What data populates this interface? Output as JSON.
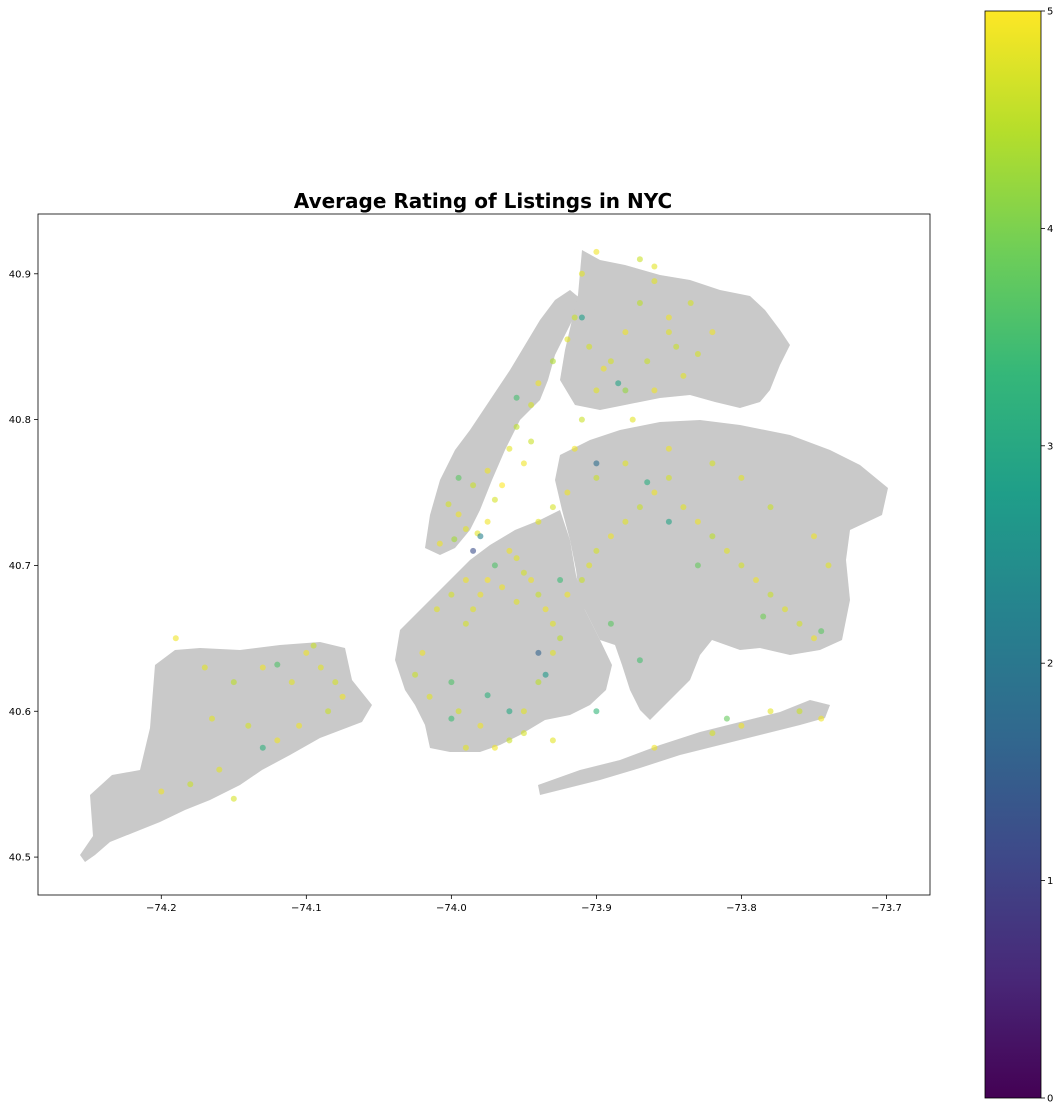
{
  "chart_data": {
    "type": "scatter",
    "title": "Average Rating of Listings in NYC",
    "xlabel": "",
    "ylabel": "",
    "xlim": [
      -74.285,
      -73.67
    ],
    "ylim": [
      40.474,
      40.941
    ],
    "x_ticks": [
      -74.2,
      -74.1,
      -74.0,
      -73.9,
      -73.8,
      -73.7
    ],
    "x_tick_labels": [
      "−74.2",
      "−74.1",
      "−74.0",
      "−73.9",
      "−73.8",
      "−73.7"
    ],
    "y_ticks": [
      40.5,
      40.6,
      40.7,
      40.8,
      40.9
    ],
    "y_tick_labels": [
      "40.5",
      "40.6",
      "40.7",
      "40.8",
      "40.9"
    ],
    "grid": false,
    "background_map": "NYC borough boundaries (gray fill)",
    "map_color": "#c9c9c9",
    "marker_alpha": 0.6,
    "colorbar": {
      "colormap": "viridis",
      "range": [
        0,
        5
      ],
      "ticks": [
        0,
        1,
        2,
        3,
        4,
        5
      ],
      "tick_labels": [
        "0",
        "1",
        "2",
        "3",
        "4",
        "5"
      ],
      "stops": [
        "#440154",
        "#482878",
        "#3e4989",
        "#31688e",
        "#26828e",
        "#1f9e89",
        "#35b779",
        "#6ece58",
        "#b5de2b",
        "#fde725"
      ]
    },
    "points": [
      [
        -73.995,
        40.735,
        4.9
      ],
      [
        -73.99,
        40.725,
        4.8
      ],
      [
        -74.002,
        40.742,
        4.7
      ],
      [
        -73.985,
        40.755,
        4.6
      ],
      [
        -73.975,
        40.765,
        4.9
      ],
      [
        -73.96,
        40.78,
        4.8
      ],
      [
        -73.955,
        40.795,
        4.5
      ],
      [
        -73.945,
        40.81,
        4.7
      ],
      [
        -73.94,
        40.825,
        4.9
      ],
      [
        -73.93,
        40.84,
        4.4
      ],
      [
        -73.92,
        40.855,
        4.8
      ],
      [
        -73.915,
        40.87,
        4.6
      ],
      [
        -74.008,
        40.715,
        4.9
      ],
      [
        -73.998,
        40.718,
        4.3
      ],
      [
        -73.982,
        40.722,
        4.8
      ],
      [
        -73.975,
        40.73,
        4.9
      ],
      [
        -73.97,
        40.745,
        4.7
      ],
      [
        -73.965,
        40.755,
        5.0
      ],
      [
        -73.95,
        40.77,
        4.9
      ],
      [
        -73.945,
        40.785,
        4.6
      ],
      [
        -73.96,
        40.71,
        4.9
      ],
      [
        -73.955,
        40.705,
        4.8
      ],
      [
        -73.95,
        40.695,
        4.7
      ],
      [
        -73.945,
        40.69,
        4.9
      ],
      [
        -73.94,
        40.68,
        4.6
      ],
      [
        -73.935,
        40.67,
        4.9
      ],
      [
        -73.93,
        40.66,
        4.8
      ],
      [
        -73.925,
        40.65,
        4.5
      ],
      [
        -73.98,
        40.68,
        4.9
      ],
      [
        -73.985,
        40.67,
        4.8
      ],
      [
        -73.99,
        40.66,
        4.7
      ],
      [
        -73.975,
        40.69,
        5.0
      ],
      [
        -73.965,
        40.685,
        4.9
      ],
      [
        -73.955,
        40.675,
        4.8
      ],
      [
        -73.99,
        40.69,
        4.9
      ],
      [
        -74.0,
        40.68,
        4.7
      ],
      [
        -74.01,
        40.67,
        4.8
      ],
      [
        -74.02,
        40.64,
        4.9
      ],
      [
        -74.025,
        40.625,
        4.6
      ],
      [
        -74.015,
        40.61,
        4.8
      ],
      [
        -73.995,
        40.6,
        4.7
      ],
      [
        -73.98,
        40.59,
        4.9
      ],
      [
        -73.96,
        40.58,
        4.6
      ],
      [
        -73.95,
        40.6,
        4.8
      ],
      [
        -73.94,
        40.62,
        4.5
      ],
      [
        -73.93,
        40.64,
        4.8
      ],
      [
        -73.92,
        40.68,
        4.9
      ],
      [
        -73.91,
        40.69,
        4.6
      ],
      [
        -73.905,
        40.7,
        4.8
      ],
      [
        -73.9,
        40.71,
        4.7
      ],
      [
        -73.89,
        40.72,
        4.9
      ],
      [
        -73.88,
        40.73,
        4.8
      ],
      [
        -73.87,
        40.74,
        4.6
      ],
      [
        -73.86,
        40.75,
        4.9
      ],
      [
        -73.85,
        40.76,
        4.7
      ],
      [
        -73.84,
        40.74,
        4.8
      ],
      [
        -73.83,
        40.73,
        4.9
      ],
      [
        -73.82,
        40.72,
        4.5
      ],
      [
        -73.81,
        40.71,
        4.8
      ],
      [
        -73.8,
        40.7,
        4.7
      ],
      [
        -73.79,
        40.69,
        4.9
      ],
      [
        -73.78,
        40.68,
        4.6
      ],
      [
        -73.77,
        40.67,
        4.8
      ],
      [
        -73.76,
        40.66,
        4.7
      ],
      [
        -73.75,
        40.65,
        4.9
      ],
      [
        -73.74,
        40.7,
        4.8
      ],
      [
        -73.75,
        40.72,
        4.9
      ],
      [
        -73.78,
        40.74,
        4.6
      ],
      [
        -73.8,
        40.76,
        4.8
      ],
      [
        -73.82,
        40.77,
        4.7
      ],
      [
        -73.85,
        40.78,
        4.9
      ],
      [
        -73.88,
        40.77,
        4.8
      ],
      [
        -73.9,
        40.76,
        4.6
      ],
      [
        -73.92,
        40.75,
        4.9
      ],
      [
        -73.93,
        40.74,
        4.7
      ],
      [
        -73.94,
        40.73,
        4.8
      ],
      [
        -73.915,
        40.78,
        4.9
      ],
      [
        -73.91,
        40.8,
        4.6
      ],
      [
        -73.9,
        40.82,
        4.8
      ],
      [
        -73.89,
        40.84,
        4.7
      ],
      [
        -73.88,
        40.86,
        4.9
      ],
      [
        -73.87,
        40.88,
        4.5
      ],
      [
        -73.86,
        40.895,
        4.8
      ],
      [
        -73.85,
        40.87,
        4.9
      ],
      [
        -73.845,
        40.85,
        4.6
      ],
      [
        -73.84,
        40.83,
        4.8
      ],
      [
        -73.83,
        40.845,
        4.7
      ],
      [
        -73.82,
        40.86,
        4.9
      ],
      [
        -73.91,
        40.9,
        4.8
      ],
      [
        -73.9,
        40.915,
        4.9
      ],
      [
        -73.87,
        40.91,
        4.6
      ],
      [
        -73.86,
        40.905,
        4.8
      ],
      [
        -73.88,
        40.82,
        4.2
      ],
      [
        -73.895,
        40.835,
        4.9
      ],
      [
        -73.905,
        40.85,
        4.7
      ],
      [
        -73.875,
        40.8,
        4.8
      ],
      [
        -73.86,
        40.82,
        4.9
      ],
      [
        -73.865,
        40.84,
        4.6
      ],
      [
        -73.85,
        40.86,
        4.8
      ],
      [
        -73.835,
        40.88,
        4.7
      ],
      [
        -74.1,
        40.64,
        4.9
      ],
      [
        -74.09,
        40.63,
        4.8
      ],
      [
        -74.08,
        40.62,
        4.7
      ],
      [
        -74.075,
        40.61,
        4.9
      ],
      [
        -74.085,
        40.6,
        4.6
      ],
      [
        -74.11,
        40.62,
        4.8
      ],
      [
        -74.13,
        40.63,
        4.9
      ],
      [
        -74.15,
        40.62,
        4.5
      ],
      [
        -74.17,
        40.63,
        4.8
      ],
      [
        -74.14,
        40.59,
        4.7
      ],
      [
        -74.12,
        40.58,
        4.9
      ],
      [
        -74.16,
        40.56,
        4.8
      ],
      [
        -74.18,
        40.55,
        4.6
      ],
      [
        -74.2,
        40.545,
        4.9
      ],
      [
        -74.15,
        40.54,
        4.7
      ],
      [
        -74.19,
        40.65,
        4.9
      ],
      [
        -74.13,
        40.575,
        3.2
      ],
      [
        -74.165,
        40.595,
        4.8
      ],
      [
        -74.095,
        40.645,
        4.6
      ],
      [
        -74.105,
        40.59,
        4.9
      ],
      [
        -73.99,
        40.575,
        4.8
      ],
      [
        -73.97,
        40.575,
        4.9
      ],
      [
        -73.95,
        40.585,
        4.7
      ],
      [
        -73.93,
        40.58,
        4.8
      ],
      [
        -73.86,
        40.575,
        4.9
      ],
      [
        -73.82,
        40.585,
        4.7
      ],
      [
        -73.8,
        40.59,
        4.9
      ],
      [
        -73.78,
        40.6,
        4.8
      ],
      [
        -73.76,
        40.6,
        4.6
      ],
      [
        -73.745,
        40.595,
        4.9
      ],
      [
        -73.985,
        40.71,
        1.2
      ],
      [
        -73.85,
        40.73,
        2.9
      ],
      [
        -73.96,
        40.6,
        3.0
      ],
      [
        -73.935,
        40.625,
        2.7
      ],
      [
        -73.9,
        40.77,
        1.8
      ],
      [
        -73.865,
        40.757,
        3.1
      ],
      [
        -73.91,
        40.87,
        2.8
      ],
      [
        -73.885,
        40.825,
        2.9
      ],
      [
        -73.94,
        40.64,
        1.6
      ],
      [
        -73.98,
        40.72,
        2.2
      ],
      [
        -73.97,
        40.7,
        3.6
      ],
      [
        -73.925,
        40.69,
        3.4
      ],
      [
        -73.89,
        40.66,
        3.7
      ],
      [
        -73.83,
        40.7,
        3.8
      ],
      [
        -73.9,
        40.6,
        3.3
      ],
      [
        -73.87,
        40.635,
        3.5
      ],
      [
        -74.0,
        40.62,
        3.6
      ],
      [
        -73.995,
        40.76,
        3.7
      ],
      [
        -73.955,
        40.815,
        3.5
      ],
      [
        -74.12,
        40.632,
        3.6
      ],
      [
        -73.785,
        40.665,
        3.9
      ],
      [
        -73.745,
        40.655,
        3.7
      ],
      [
        -73.81,
        40.595,
        3.8
      ],
      [
        -74.0,
        40.595,
        3.4
      ],
      [
        -73.975,
        40.611,
        3.2
      ]
    ]
  }
}
